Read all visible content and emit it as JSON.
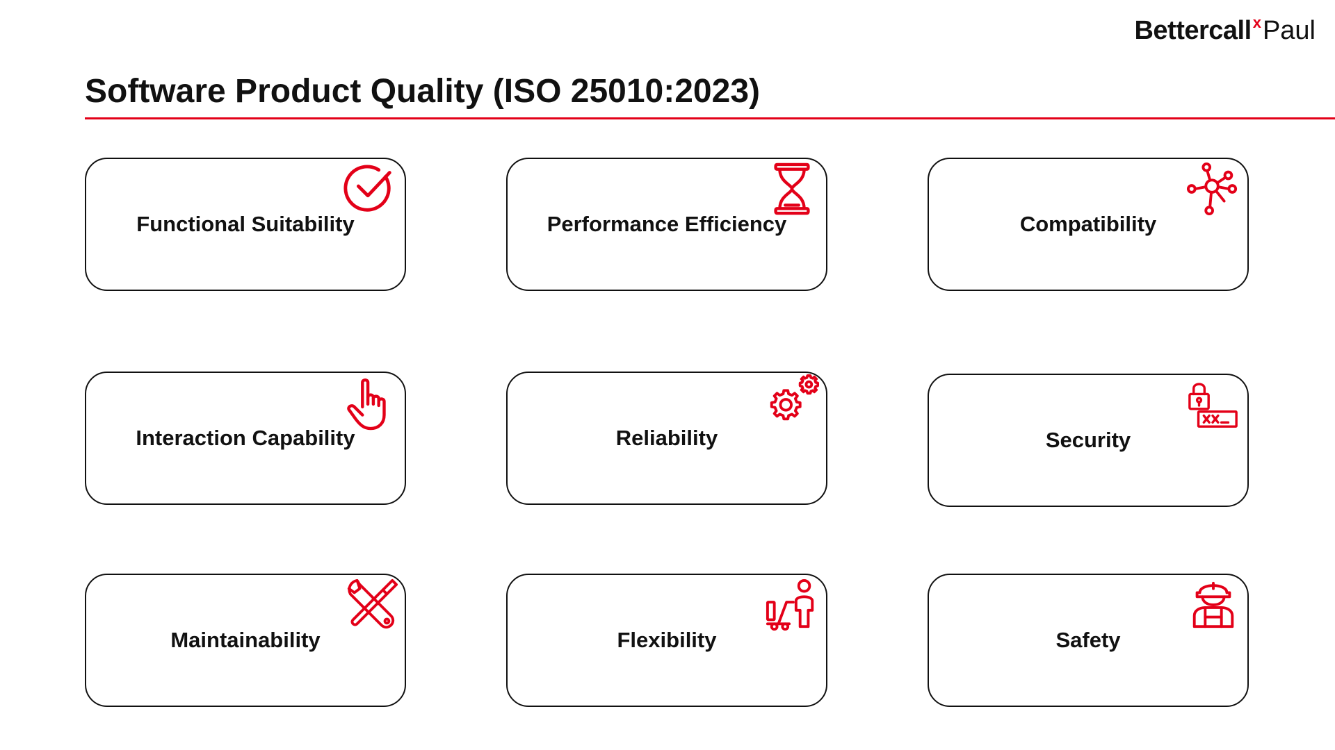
{
  "logo": {
    "part1": "Bettercall",
    "mark": "x",
    "part2": "Paul"
  },
  "title": "Software Product Quality (ISO 25010:2023)",
  "accent_color": "#e30018",
  "cards": [
    {
      "label": "Functional Suitability",
      "icon": "checkmark-circle-icon"
    },
    {
      "label": "Performance Efficiency",
      "icon": "hourglass-icon"
    },
    {
      "label": "Compatibility",
      "icon": "network-nodes-icon"
    },
    {
      "label": "Interaction Capability",
      "icon": "pointing-hand-icon"
    },
    {
      "label": "Reliability",
      "icon": "gears-icon"
    },
    {
      "label": "Security",
      "icon": "lock-terminal-icon"
    },
    {
      "label": "Maintainability",
      "icon": "wrench-screwdriver-icon"
    },
    {
      "label": "Flexibility",
      "icon": "person-trolley-icon"
    },
    {
      "label": "Safety",
      "icon": "hard-hat-worker-icon"
    }
  ]
}
